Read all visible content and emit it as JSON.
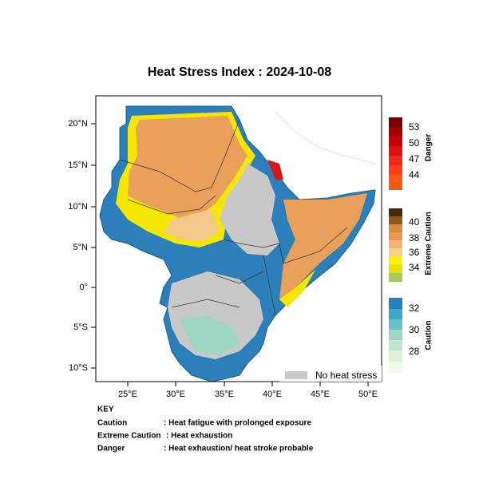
{
  "title": "Heat Stress Index : 2024-10-08",
  "map": {
    "lat_labels": [
      "20°N",
      "15°N",
      "10°N",
      "5°N",
      "0°",
      "5°S",
      "10°S"
    ],
    "lon_labels": [
      "25°E",
      "30°E",
      "35°E",
      "40°E",
      "45°E",
      "50°E"
    ],
    "no_heat_label": "No heat stress"
  },
  "colorbars": [
    {
      "name": "Danger",
      "labels": [
        "53",
        "50",
        "47",
        "44"
      ]
    },
    {
      "name": "Extreme Caution",
      "labels": [
        "40",
        "38",
        "36",
        "34"
      ]
    },
    {
      "name": "Caution",
      "labels": [
        "32",
        "30",
        "28"
      ]
    }
  ],
  "key": {
    "title": "KEY",
    "rows": [
      [
        "Caution",
        ": Heat fatigue with prolonged exposure"
      ],
      [
        "Extreme Caution",
        ": Heat exhaustion"
      ],
      [
        "Danger",
        ": Heat exhaustion/ heat stroke probable"
      ]
    ]
  }
}
